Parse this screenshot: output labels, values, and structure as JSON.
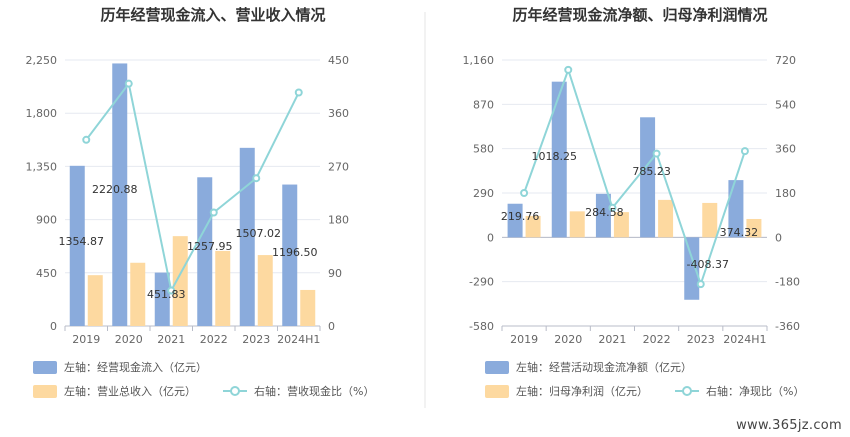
{
  "watermark": "www.365jz.com",
  "colors": {
    "bar_primary": "#8aabdc",
    "bar_secondary": "#fdd9a0",
    "line": "#8fd5d8",
    "grid": "#e6e9f0",
    "axis": "#b8bcc8",
    "divider": "#e6e6e6"
  },
  "chart_data": [
    {
      "type": "bar",
      "title": "历年经营现金流入、营业收入情况",
      "categories": [
        "2019",
        "2020",
        "2021",
        "2022",
        "2023",
        "2024H1"
      ],
      "y_left": {
        "ticks": [
          0,
          450,
          900,
          1350,
          1800,
          2250
        ],
        "tick_labels": [
          "0",
          "450",
          "900",
          "1,350",
          "1,800",
          "2,250"
        ],
        "range": [
          0,
          2250
        ]
      },
      "y_right": {
        "ticks": [
          0,
          90,
          180,
          270,
          360,
          450
        ],
        "tick_labels": [
          "0",
          "90",
          "180",
          "270",
          "360",
          "450"
        ],
        "range": [
          0,
          450
        ]
      },
      "series": [
        {
          "name": "左轴：经营现金流入（亿元）",
          "kind": "bar",
          "axis": "left",
          "color": "#8aabdc",
          "values": [
            1354.87,
            2220.88,
            451.83,
            1257.95,
            1507.02,
            1196.5
          ],
          "labels": [
            "1354.87",
            "2220.88",
            "451.83",
            "1257.95",
            "1507.02",
            "1196.50"
          ]
        },
        {
          "name": "左轴：营业总收入（亿元）",
          "kind": "bar",
          "axis": "left",
          "color": "#fdd9a0",
          "values": [
            430,
            535,
            760,
            635,
            600,
            305
          ]
        },
        {
          "name": "右轴：营收现金比（%）",
          "kind": "line",
          "axis": "right",
          "color": "#8fd5d8",
          "values": [
            315,
            410,
            60,
            192,
            250,
            395
          ]
        }
      ],
      "legend": [
        {
          "label": "左轴：经营现金流入（亿元）",
          "icon": "bar",
          "color": "#8aabdc"
        },
        {
          "label": "左轴：营业总收入（亿元）",
          "icon": "bar",
          "color": "#fdd9a0"
        },
        {
          "label": "右轴：营收现金比（%）",
          "icon": "line",
          "color": "#8fd5d8"
        }
      ]
    },
    {
      "type": "bar",
      "title": "历年经营现金流净额、归母净利润情况",
      "categories": [
        "2019",
        "2020",
        "2021",
        "2022",
        "2023",
        "2024H1"
      ],
      "y_left": {
        "ticks": [
          -580,
          -290,
          0,
          290,
          580,
          870,
          1160
        ],
        "tick_labels": [
          "-580",
          "-290",
          "0",
          "290",
          "580",
          "870",
          "1,160"
        ],
        "range": [
          -580,
          1160
        ]
      },
      "y_right": {
        "ticks": [
          -360,
          -180,
          0,
          180,
          360,
          540,
          720
        ],
        "tick_labels": [
          "-360",
          "-180",
          "0",
          "180",
          "360",
          "540",
          "720"
        ],
        "range": [
          -360,
          720
        ]
      },
      "series": [
        {
          "name": "左轴：经营活动现金流净额（亿元）",
          "kind": "bar",
          "axis": "left",
          "color": "#8aabdc",
          "values": [
            219.76,
            1018.25,
            284.58,
            785.23,
            -408.37,
            374.32
          ],
          "labels": [
            "219.76",
            "1018.25",
            "284.58",
            "785.23",
            "-408.37",
            "374.32"
          ]
        },
        {
          "name": "左轴：归母净利润（亿元）",
          "kind": "bar",
          "axis": "left",
          "color": "#fdd9a0",
          "values": [
            140,
            170,
            165,
            245,
            225,
            120
          ]
        },
        {
          "name": "右轴：净现比（%）",
          "kind": "line",
          "axis": "right",
          "color": "#8fd5d8",
          "values": [
            180,
            680,
            120,
            340,
            -190,
            350
          ]
        }
      ],
      "legend": [
        {
          "label": "左轴：经营活动现金流净额（亿元）",
          "icon": "bar",
          "color": "#8aabdc"
        },
        {
          "label": "左轴：归母净利润（亿元）",
          "icon": "bar",
          "color": "#fdd9a0"
        },
        {
          "label": "右轴：净现比（%）",
          "icon": "line",
          "color": "#8fd5d8"
        }
      ]
    }
  ]
}
